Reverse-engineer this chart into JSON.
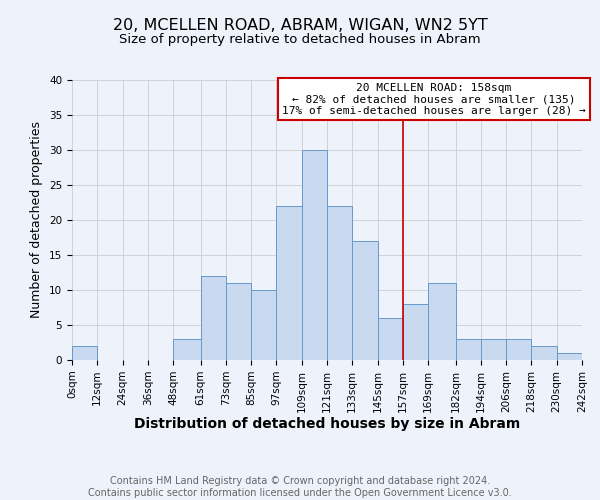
{
  "title": "20, MCELLEN ROAD, ABRAM, WIGAN, WN2 5YT",
  "subtitle": "Size of property relative to detached houses in Abram",
  "xlabel": "Distribution of detached houses by size in Abram",
  "ylabel": "Number of detached properties",
  "bin_edges": [
    0,
    12,
    24,
    36,
    48,
    61,
    73,
    85,
    97,
    109,
    121,
    133,
    145,
    157,
    169,
    182,
    194,
    206,
    218,
    230,
    242
  ],
  "bar_heights": [
    2,
    0,
    0,
    0,
    3,
    12,
    11,
    10,
    22,
    30,
    22,
    17,
    6,
    8,
    11,
    3,
    3,
    3,
    2,
    1
  ],
  "tick_labels": [
    "0sqm",
    "12sqm",
    "24sqm",
    "36sqm",
    "48sqm",
    "61sqm",
    "73sqm",
    "85sqm",
    "97sqm",
    "109sqm",
    "121sqm",
    "133sqm",
    "145sqm",
    "157sqm",
    "169sqm",
    "182sqm",
    "194sqm",
    "206sqm",
    "218sqm",
    "230sqm",
    "242sqm"
  ],
  "bar_color": "#c9d9f0",
  "bar_edge_color": "#6699cc",
  "vline_x": 157,
  "vline_color": "#cc0000",
  "ylim": [
    0,
    40
  ],
  "yticks": [
    0,
    5,
    10,
    15,
    20,
    25,
    30,
    35,
    40
  ],
  "grid_color": "#cccccc",
  "bg_color": "#eef2fb",
  "annotation_text": "20 MCELLEN ROAD: 158sqm\n← 82% of detached houses are smaller (135)\n17% of semi-detached houses are larger (28) →",
  "annotation_box_color": "#ffffff",
  "annotation_box_edgecolor": "#cc0000",
  "footer_line1": "Contains HM Land Registry data © Crown copyright and database right 2024.",
  "footer_line2": "Contains public sector information licensed under the Open Government Licence v3.0.",
  "title_fontsize": 11.5,
  "subtitle_fontsize": 9.5,
  "xlabel_fontsize": 10,
  "ylabel_fontsize": 9,
  "tick_fontsize": 7.5,
  "annotation_fontsize": 8,
  "footer_fontsize": 7
}
